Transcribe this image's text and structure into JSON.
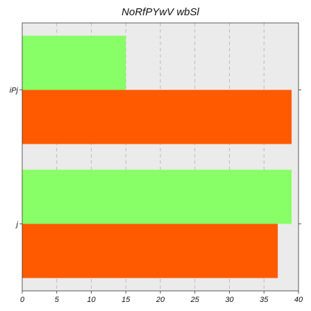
{
  "chart_data": {
    "type": "bar",
    "orientation": "horizontal",
    "title": "NoRfPYwV wbSl",
    "xlabel": "",
    "ylabel": "",
    "categories": [
      "iPj",
      "j"
    ],
    "series": [
      {
        "color": "#ff5a00",
        "values": [
          39,
          37
        ]
      },
      {
        "color": "#88ff66",
        "values": [
          15,
          39
        ]
      }
    ],
    "xlim": [
      0,
      40
    ],
    "xticks": [
      0,
      5,
      10,
      15,
      20,
      25,
      30,
      35,
      40
    ],
    "grid": "x dashed",
    "legend": "none",
    "background": "#ebebeb"
  }
}
